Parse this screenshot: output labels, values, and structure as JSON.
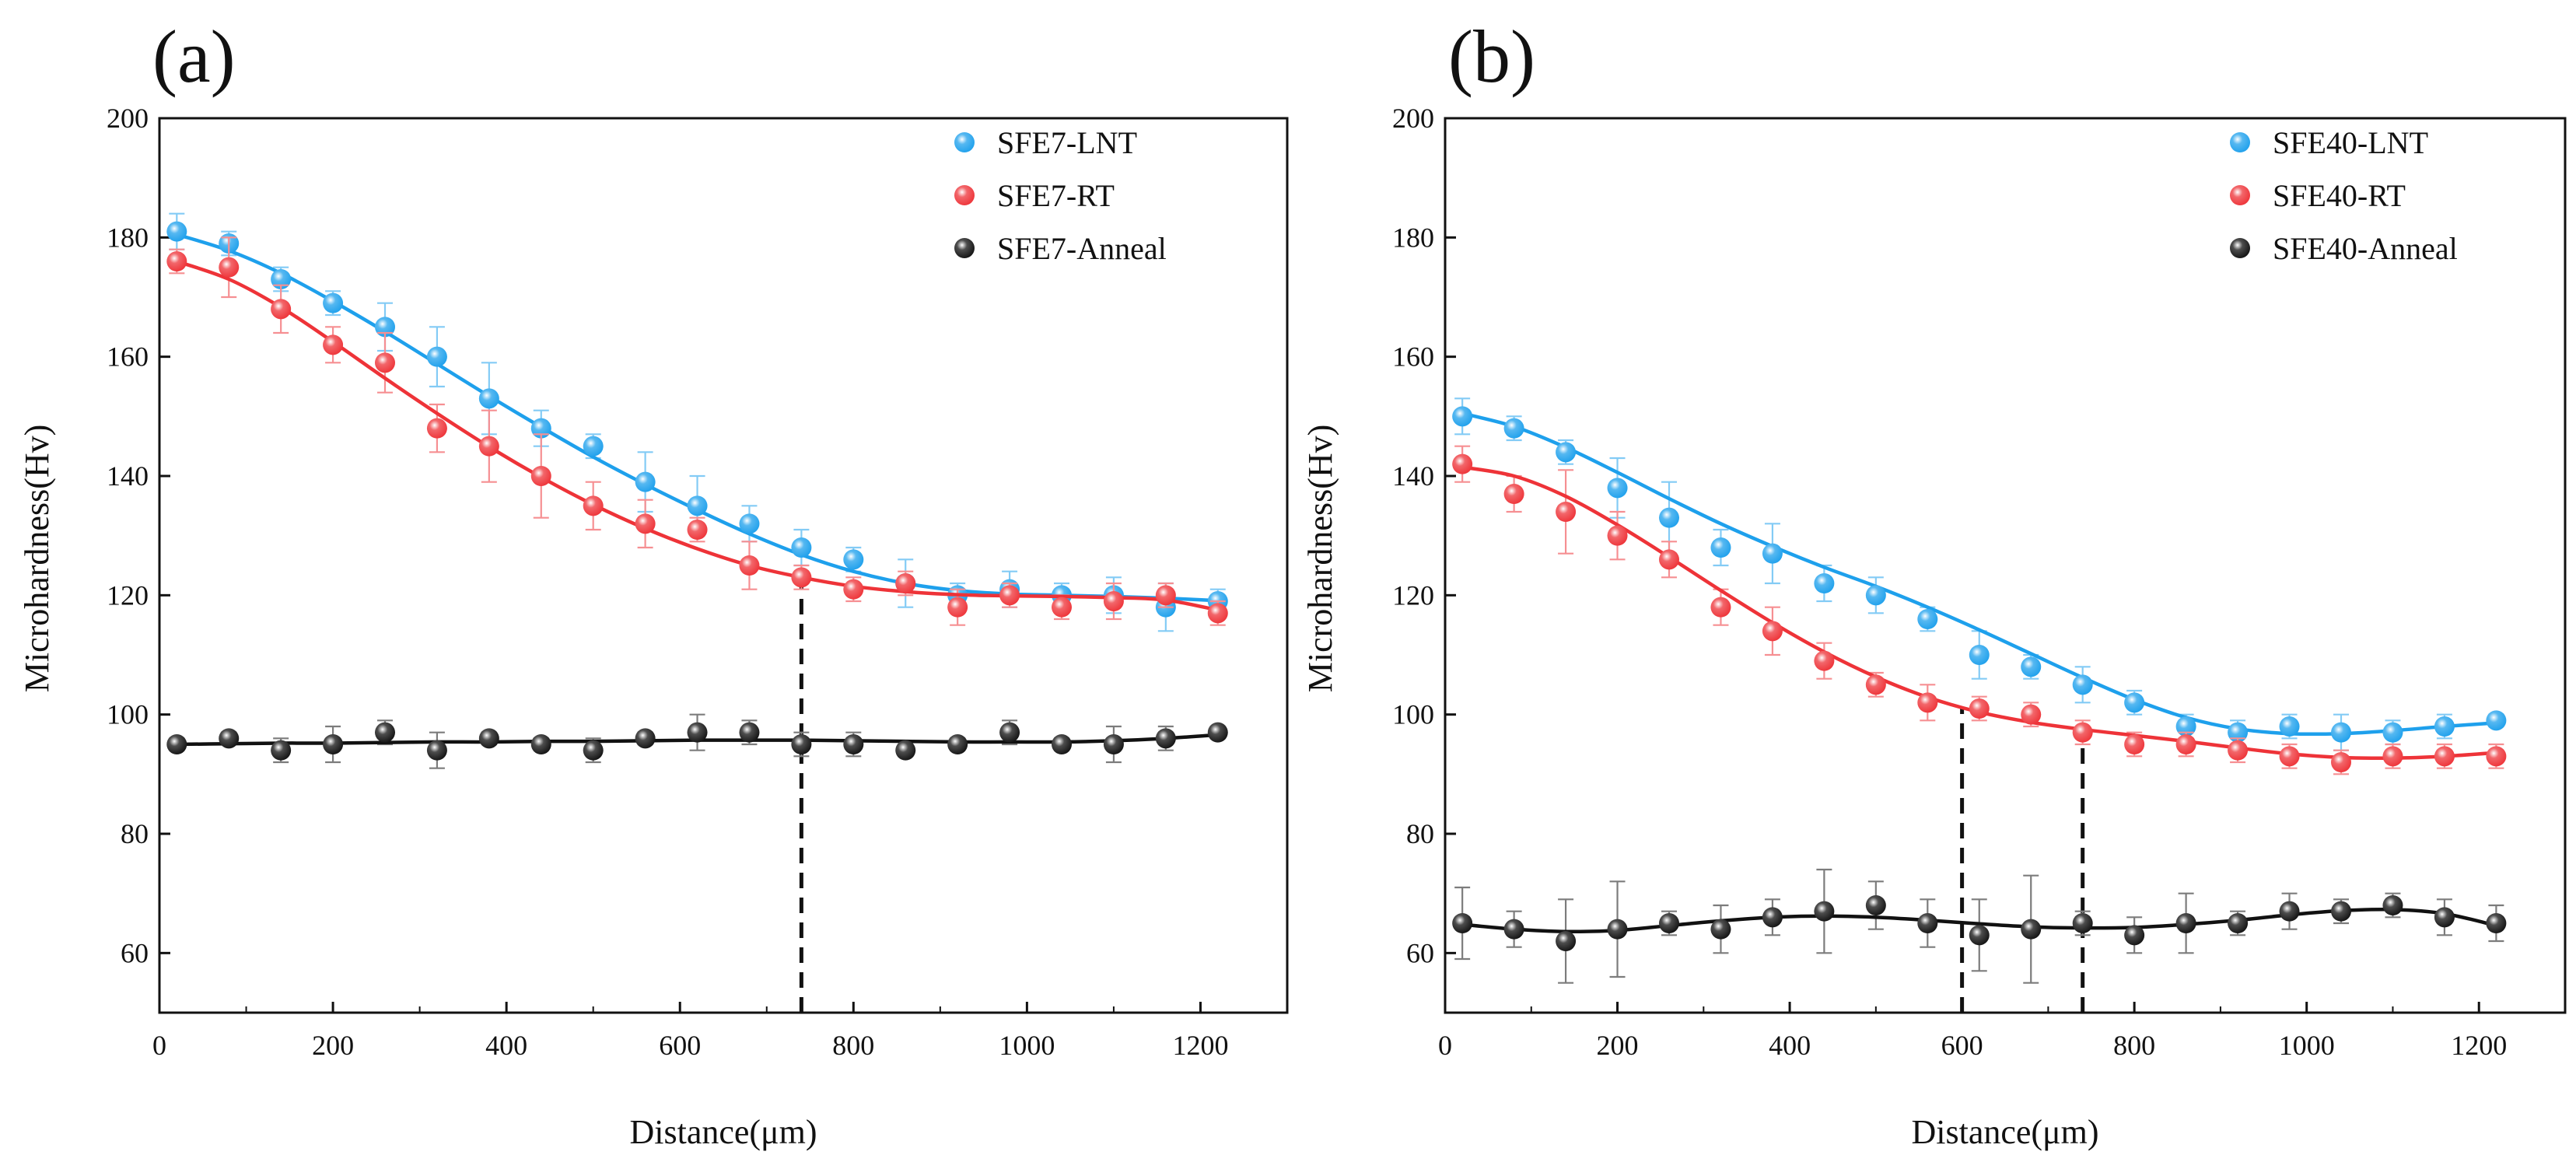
{
  "chart_data": [
    {
      "type": "scatter",
      "panel_label": "(a)",
      "xlabel": "Distance(μm)",
      "ylabel": "Microhardness(Hv)",
      "xlim": [
        0,
        1300
      ],
      "ylim": [
        50,
        200
      ],
      "xticks": [
        0,
        200,
        400,
        600,
        800,
        1000,
        1200
      ],
      "yticks": [
        60,
        80,
        100,
        120,
        140,
        160,
        180,
        200
      ],
      "x": [
        20,
        80,
        140,
        200,
        260,
        320,
        380,
        440,
        500,
        560,
        620,
        680,
        740,
        800,
        860,
        920,
        980,
        1040,
        1100,
        1160,
        1220
      ],
      "legend_position": "top-right",
      "series": [
        {
          "name": "SFE7-LNT",
          "color": "#1ea0ec",
          "values": [
            181,
            179,
            173,
            169,
            165,
            160,
            153,
            148,
            145,
            139,
            135,
            132,
            128,
            126,
            122,
            120,
            121,
            120,
            120,
            118,
            119
          ],
          "errors": [
            3,
            2,
            2,
            2,
            4,
            5,
            6,
            3,
            2,
            5,
            5,
            3,
            3,
            2,
            4,
            2,
            3,
            2,
            3,
            4,
            2
          ],
          "fit": [
            180.5,
            177.8,
            174.0,
            169.3,
            164.2,
            158.8,
            153.4,
            148.2,
            143.2,
            138.6,
            134.3,
            130.3,
            126.8,
            124.0,
            122.0,
            120.8,
            120.2,
            120.0,
            119.8,
            119.5,
            119.1
          ]
        },
        {
          "name": "SFE7-RT",
          "color": "#ee3338",
          "values": [
            176,
            175,
            168,
            162,
            159,
            148,
            145,
            140,
            135,
            132,
            131,
            125,
            123,
            121,
            122,
            118,
            120,
            118,
            119,
            120,
            117
          ],
          "errors": [
            2,
            5,
            4,
            3,
            5,
            4,
            6,
            7,
            4,
            4,
            2,
            4,
            2,
            2,
            2,
            3,
            2,
            2,
            3,
            2,
            2
          ],
          "fit": [
            176.0,
            173.0,
            168.3,
            162.5,
            156.4,
            150.5,
            144.9,
            139.8,
            135.2,
            131.2,
            127.8,
            125.0,
            123.0,
            121.5,
            120.6,
            120.1,
            119.9,
            119.8,
            119.6,
            119.2,
            117.5
          ]
        },
        {
          "name": "SFE7-Anneal",
          "color": "#111111",
          "values": [
            95,
            96,
            94,
            95,
            97,
            94,
            96,
            95,
            94,
            96,
            97,
            97,
            95,
            95,
            94,
            95,
            97,
            95,
            95,
            96,
            97
          ],
          "errors": [
            1,
            1,
            2,
            3,
            2,
            3,
            1,
            1,
            2,
            1,
            3,
            2,
            2,
            2,
            1,
            1,
            2,
            1,
            3,
            2,
            1
          ],
          "fit": [
            95.0,
            95.1,
            95.2,
            95.2,
            95.3,
            95.4,
            95.4,
            95.5,
            95.5,
            95.6,
            95.7,
            95.7,
            95.7,
            95.6,
            95.5,
            95.4,
            95.4,
            95.4,
            95.6,
            96.0,
            96.6
          ]
        }
      ],
      "vertical_markers": [
        740
      ]
    },
    {
      "type": "scatter",
      "panel_label": "(b)",
      "xlabel": "Distance(μm)",
      "ylabel": "Microhardness(Hv)",
      "xlim": [
        0,
        1300
      ],
      "ylim": [
        50,
        200
      ],
      "xticks": [
        0,
        200,
        400,
        600,
        800,
        1000,
        1200
      ],
      "yticks": [
        60,
        80,
        100,
        120,
        140,
        160,
        180,
        200
      ],
      "x": [
        20,
        80,
        140,
        200,
        260,
        320,
        380,
        440,
        500,
        560,
        620,
        680,
        740,
        800,
        860,
        920,
        980,
        1040,
        1100,
        1160,
        1220
      ],
      "legend_position": "top-right",
      "series": [
        {
          "name": "SFE40-LNT",
          "color": "#1ea0ec",
          "values": [
            150,
            148,
            144,
            138,
            133,
            128,
            127,
            122,
            120,
            116,
            110,
            108,
            105,
            102,
            98,
            97,
            98,
            97,
            97,
            98,
            99
          ],
          "errors": [
            3,
            2,
            2,
            5,
            6,
            3,
            5,
            3,
            3,
            2,
            4,
            2,
            3,
            2,
            2,
            2,
            2,
            3,
            2,
            2,
            1
          ],
          "fit": [
            150.5,
            148.3,
            144.8,
            140.6,
            136.2,
            132.0,
            128.2,
            124.7,
            121.5,
            118.0,
            114.2,
            110.2,
            106.2,
            102.5,
            99.5,
            97.6,
            96.8,
            96.8,
            97.3,
            98.0,
            98.6
          ]
        },
        {
          "name": "SFE40-RT",
          "color": "#ee3338",
          "values": [
            142,
            137,
            134,
            130,
            126,
            118,
            114,
            109,
            105,
            102,
            101,
            100,
            97,
            95,
            95,
            94,
            93,
            92,
            93,
            93,
            93
          ],
          "errors": [
            3,
            3,
            7,
            4,
            3,
            3,
            4,
            3,
            2,
            3,
            2,
            2,
            2,
            2,
            2,
            2,
            2,
            2,
            2,
            2,
            2
          ],
          "fit": [
            141.5,
            140.0,
            136.6,
            131.8,
            126.4,
            120.8,
            115.4,
            110.5,
            106.3,
            102.9,
            100.4,
            98.7,
            97.5,
            96.5,
            95.5,
            94.4,
            93.4,
            92.8,
            92.7,
            93.0,
            93.6
          ]
        },
        {
          "name": "SFE40-Anneal",
          "color": "#111111",
          "values": [
            65,
            64,
            62,
            64,
            65,
            64,
            66,
            67,
            68,
            65,
            63,
            64,
            65,
            63,
            65,
            65,
            67,
            67,
            68,
            66,
            65
          ],
          "errors": [
            6,
            3,
            7,
            8,
            2,
            4,
            3,
            7,
            4,
            4,
            6,
            9,
            2,
            3,
            5,
            2,
            3,
            2,
            2,
            3,
            3
          ],
          "fit": [
            64.8,
            64.0,
            63.6,
            63.8,
            64.6,
            65.4,
            66.0,
            66.2,
            66.0,
            65.5,
            64.9,
            64.4,
            64.2,
            64.3,
            64.8,
            65.5,
            66.4,
            67.1,
            67.3,
            66.6,
            64.6
          ]
        }
      ],
      "vertical_markers": [
        600,
        740
      ]
    }
  ]
}
